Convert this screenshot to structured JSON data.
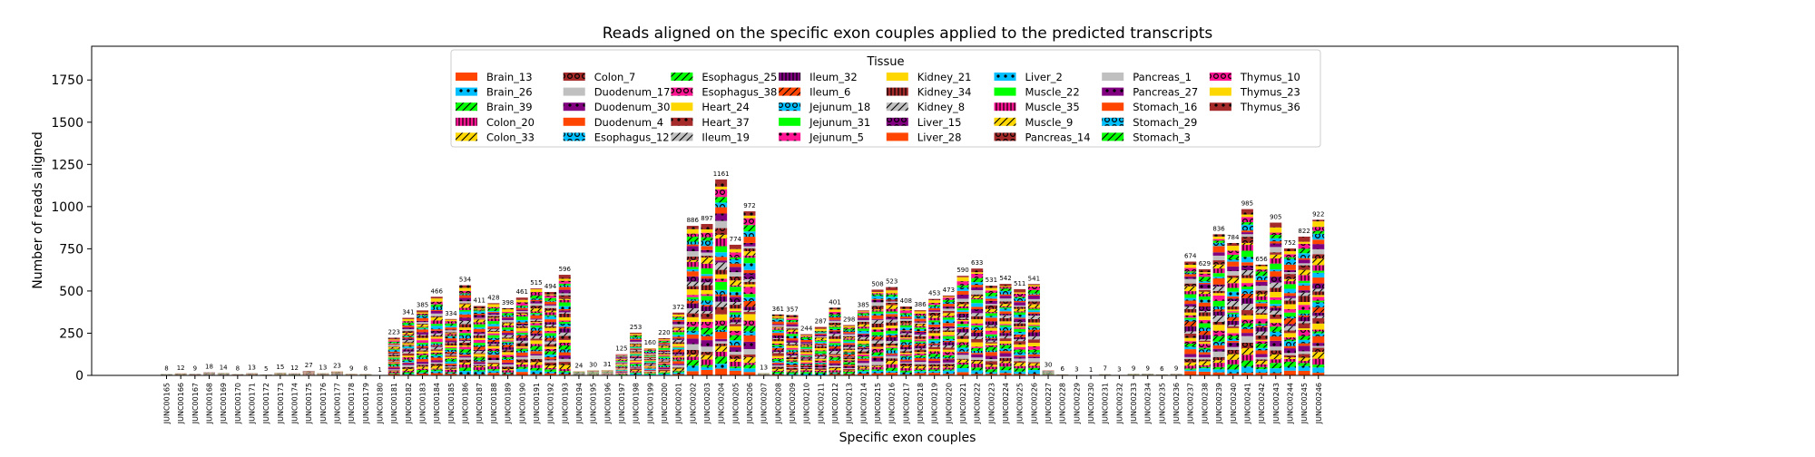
{
  "chart_data": {
    "type": "bar",
    "stacked": true,
    "title": "Reads aligned on the specific exon couples applied to the predicted transcripts",
    "xlabel": "Specific exon couples",
    "ylabel": "Number of reads aligned",
    "ylim": [
      0,
      1950
    ],
    "yticks": [
      0,
      250,
      500,
      750,
      1000,
      1250,
      1500,
      1750
    ],
    "grid": false,
    "legend": {
      "title": "Tissue",
      "placement": "top-center",
      "columns": 8
    },
    "series": [
      {
        "name": "Brain_13",
        "color": "#FF4500",
        "pattern": "none"
      },
      {
        "name": "Brain_26",
        "color": "#00BFFF",
        "pattern": "dot"
      },
      {
        "name": "Brain_39",
        "color": "#00FF00",
        "pattern": "slash"
      },
      {
        "name": "Colon_20",
        "color": "#FF1493",
        "pattern": "vline"
      },
      {
        "name": "Colon_33",
        "color": "#FFD700",
        "pattern": "slash"
      },
      {
        "name": "Colon_7",
        "color": "#A52A2A",
        "pattern": "ring"
      },
      {
        "name": "Duodenum_17",
        "color": "#C0C0C0",
        "pattern": "none"
      },
      {
        "name": "Duodenum_30",
        "color": "#800080",
        "pattern": "dot"
      },
      {
        "name": "Duodenum_4",
        "color": "#FF4500",
        "pattern": "none"
      },
      {
        "name": "Esophagus_12",
        "color": "#00BFFF",
        "pattern": "ring"
      },
      {
        "name": "Esophagus_25",
        "color": "#00FF00",
        "pattern": "slash"
      },
      {
        "name": "Esophagus_38",
        "color": "#FF1493",
        "pattern": "ring"
      },
      {
        "name": "Heart_24",
        "color": "#FFD700",
        "pattern": "none"
      },
      {
        "name": "Heart_37",
        "color": "#A52A2A",
        "pattern": "dot"
      },
      {
        "name": "Ileum_19",
        "color": "#C0C0C0",
        "pattern": "slash"
      },
      {
        "name": "Ileum_32",
        "color": "#800080",
        "pattern": "vline"
      },
      {
        "name": "Ileum_6",
        "color": "#FF4500",
        "pattern": "slash"
      },
      {
        "name": "Jejunum_18",
        "color": "#00BFFF",
        "pattern": "ring"
      },
      {
        "name": "Jejunum_31",
        "color": "#00FF00",
        "pattern": "none"
      },
      {
        "name": "Jejunum_5",
        "color": "#FF1493",
        "pattern": "dot"
      },
      {
        "name": "Kidney_21",
        "color": "#FFD700",
        "pattern": "none"
      },
      {
        "name": "Kidney_34",
        "color": "#A52A2A",
        "pattern": "vline"
      },
      {
        "name": "Kidney_8",
        "color": "#C0C0C0",
        "pattern": "slash"
      },
      {
        "name": "Liver_15",
        "color": "#800080",
        "pattern": "ring"
      },
      {
        "name": "Liver_28",
        "color": "#FF4500",
        "pattern": "none"
      },
      {
        "name": "Liver_2",
        "color": "#00BFFF",
        "pattern": "dot"
      },
      {
        "name": "Muscle_22",
        "color": "#00FF00",
        "pattern": "none"
      },
      {
        "name": "Muscle_35",
        "color": "#FF1493",
        "pattern": "vline"
      },
      {
        "name": "Muscle_9",
        "color": "#FFD700",
        "pattern": "slash"
      },
      {
        "name": "Pancreas_14",
        "color": "#A52A2A",
        "pattern": "ring"
      },
      {
        "name": "Pancreas_1",
        "color": "#C0C0C0",
        "pattern": "none"
      },
      {
        "name": "Pancreas_27",
        "color": "#800080",
        "pattern": "dot"
      },
      {
        "name": "Stomach_16",
        "color": "#FF4500",
        "pattern": "none"
      },
      {
        "name": "Stomach_29",
        "color": "#00BFFF",
        "pattern": "ring"
      },
      {
        "name": "Stomach_3",
        "color": "#00FF00",
        "pattern": "slash"
      },
      {
        "name": "Thymus_10",
        "color": "#FF1493",
        "pattern": "ring"
      },
      {
        "name": "Thymus_23",
        "color": "#FFD700",
        "pattern": "none"
      },
      {
        "name": "Thymus_36",
        "color": "#A52A2A",
        "pattern": "dot"
      }
    ],
    "categories": [
      "JUNC00165",
      "JUNC00166",
      "JUNC00167",
      "JUNC00168",
      "JUNC00169",
      "JUNC00170",
      "JUNC00171",
      "JUNC00172",
      "JUNC00173",
      "JUNC00174",
      "JUNC00175",
      "JUNC00176",
      "JUNC00177",
      "JUNC00178",
      "JUNC00179",
      "JUNC00180",
      "JUNC00181",
      "JUNC00182",
      "JUNC00183",
      "JUNC00184",
      "JUNC00185",
      "JUNC00186",
      "JUNC00187",
      "JUNC00188",
      "JUNC00189",
      "JUNC00190",
      "JUNC00191",
      "JUNC00192",
      "JUNC00193",
      "JUNC00194",
      "JUNC00195",
      "JUNC00196",
      "JUNC00197",
      "JUNC00198",
      "JUNC00199",
      "JUNC00200",
      "JUNC00201",
      "JUNC00202",
      "JUNC00203",
      "JUNC00204",
      "JUNC00205",
      "JUNC00206",
      "JUNC00207",
      "JUNC00208",
      "JUNC00209",
      "JUNC00210",
      "JUNC00211",
      "JUNC00212",
      "JUNC00213",
      "JUNC00214",
      "JUNC00215",
      "JUNC00216",
      "JUNC00217",
      "JUNC00218",
      "JUNC00219",
      "JUNC00220",
      "JUNC00221",
      "JUNC00222",
      "JUNC00223",
      "JUNC00224",
      "JUNC00225",
      "JUNC00226",
      "JUNC00227",
      "JUNC00228",
      "JUNC00229",
      "JUNC00230",
      "JUNC00231",
      "JUNC00232",
      "JUNC00233",
      "JUNC00234",
      "JUNC00235",
      "JUNC00236",
      "JUNC00237",
      "JUNC00238",
      "JUNC00239",
      "JUNC00240",
      "JUNC00241",
      "JUNC00242",
      "JUNC00243",
      "JUNC00244",
      "JUNC00245",
      "JUNC00246"
    ],
    "totals": [
      8,
      12,
      9,
      18,
      14,
      8,
      13,
      5,
      15,
      12,
      27,
      13,
      23,
      9,
      8,
      1,
      223,
      341,
      385,
      466,
      334,
      534,
      411,
      428,
      398,
      461,
      515,
      494,
      596,
      24,
      30,
      31,
      125,
      253,
      160,
      220,
      372,
      886,
      897,
      1161,
      774,
      972,
      13,
      361,
      357,
      244,
      287,
      401,
      298,
      385,
      508,
      523,
      408,
      386,
      453,
      473,
      590,
      633,
      531,
      542,
      511,
      541,
      30,
      6,
      3,
      1,
      7,
      3,
      9,
      9,
      6,
      9,
      674,
      629,
      836,
      784,
      985,
      656,
      905,
      752,
      822,
      922
    ],
    "total_labels": [
      "8",
      "12",
      "9",
      "18",
      "14",
      "8",
      "13",
      "5",
      "15",
      "12",
      "27",
      "13",
      "23",
      "9",
      "8",
      "1",
      "223",
      "341",
      "385",
      "466",
      "334",
      "534",
      "411",
      "428",
      "398",
      "461",
      "515",
      "494",
      "596",
      "24",
      "30",
      "31",
      "125",
      "253",
      "160",
      "220",
      "372",
      "886",
      "897",
      "1161",
      "774",
      "972",
      "13",
      "361",
      "357",
      "244",
      "287",
      "401",
      "298",
      "385",
      "508",
      "523",
      "408",
      "386",
      "453",
      "473",
      "590",
      "633",
      "531",
      "542",
      "511",
      "541",
      "30",
      "6",
      "3",
      "1",
      "7",
      "3",
      "9",
      "9",
      "6",
      "9",
      "674",
      "629",
      "836",
      "784",
      "985",
      "656",
      "905",
      "752",
      "822",
      "922"
    ]
  }
}
